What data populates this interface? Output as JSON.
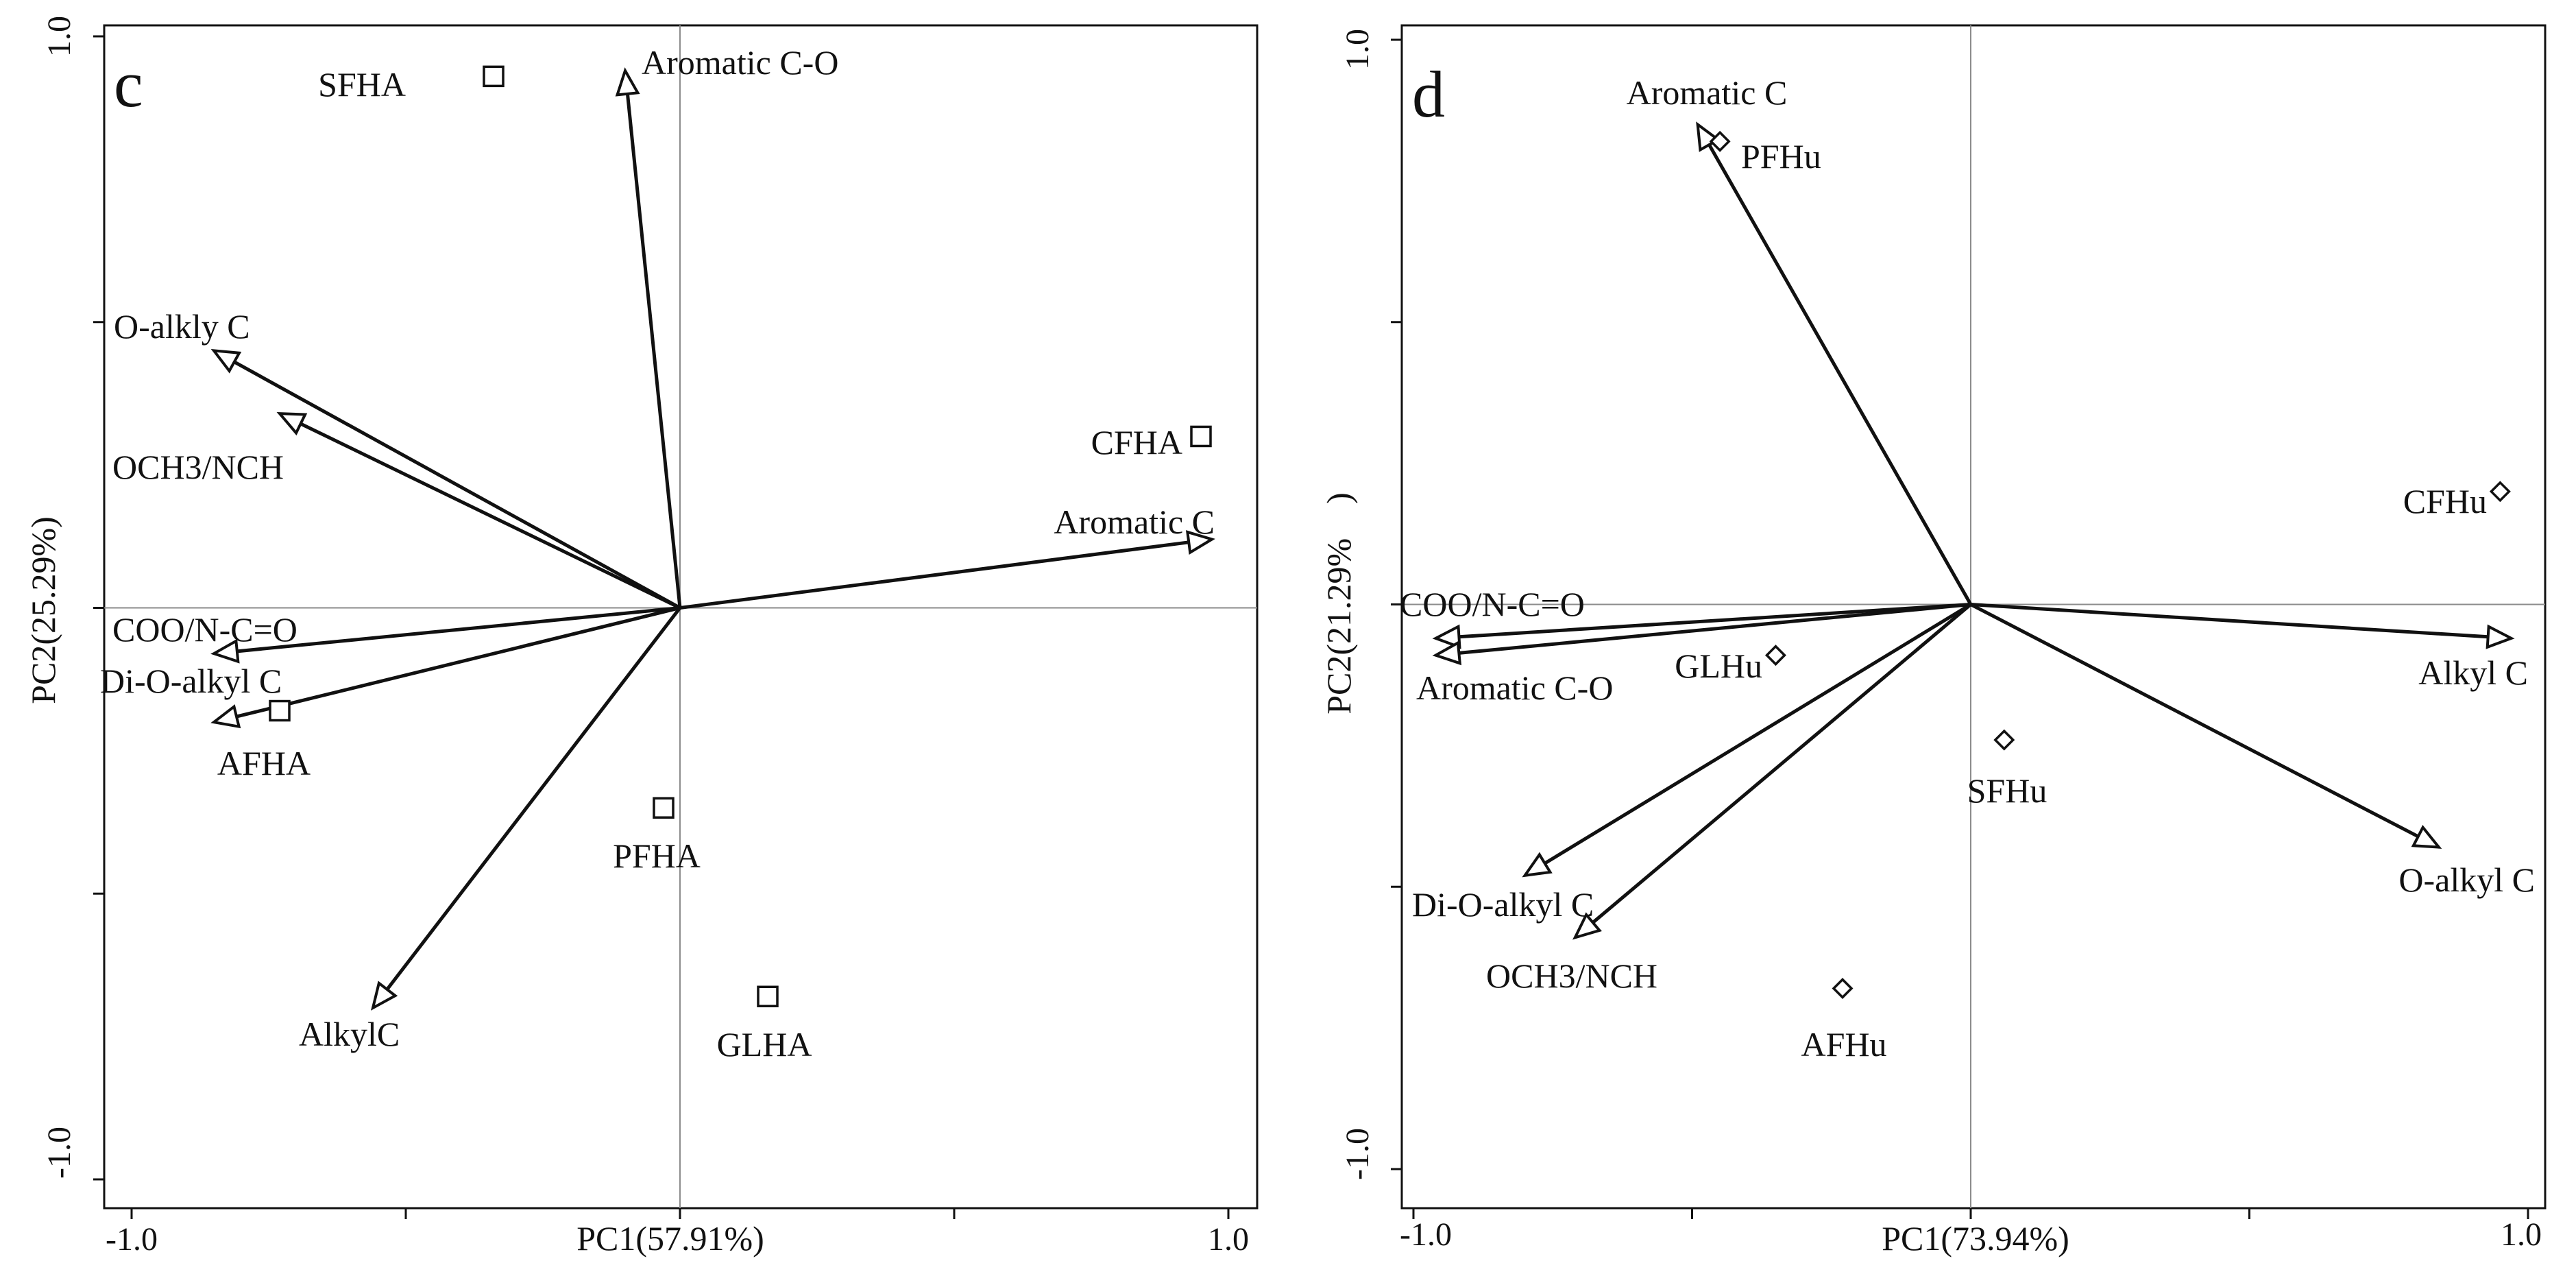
{
  "chart_data": [
    {
      "type": "scatter",
      "subtype": "pca-biplot",
      "panel": "c",
      "xlabel": "PC1(57.91%)",
      "ylabel": "PC2(25.29%)",
      "xlim": [
        -1.0,
        1.0
      ],
      "ylim": [
        -1.0,
        1.0
      ],
      "x_tick_labels": [
        "-1.0",
        "1.0"
      ],
      "y_tick_labels": [
        "1.0",
        "-1.0"
      ],
      "marker": "square",
      "variables": [
        {
          "name": "Aromatic C-O",
          "x": -0.1,
          "y": 0.94
        },
        {
          "name": "O-alkly C",
          "x": -0.85,
          "y": 0.45
        },
        {
          "name": "OCH3/NCH",
          "x": -0.73,
          "y": 0.34
        },
        {
          "name": "Aromatic C",
          "x": 0.97,
          "y": 0.12
        },
        {
          "name": "COO/N-C=O",
          "x": -0.85,
          "y": -0.08
        },
        {
          "name": "Di-O-alkyl C",
          "x": -0.85,
          "y": -0.2
        },
        {
          "name": "AlkylC",
          "x": -0.56,
          "y": -0.7
        }
      ],
      "observations": [
        {
          "name": "SFHA",
          "x": -0.34,
          "y": 0.93
        },
        {
          "name": "CFHA",
          "x": 0.95,
          "y": 0.3
        },
        {
          "name": "AFHA",
          "x": -0.73,
          "y": -0.18
        },
        {
          "name": "PFHA",
          "x": -0.03,
          "y": -0.35
        },
        {
          "name": "GLHA",
          "x": 0.16,
          "y": -0.68
        }
      ]
    },
    {
      "type": "scatter",
      "subtype": "pca-biplot",
      "panel": "d",
      "xlabel": "PC1(73.94%)",
      "ylabel": "PC2(21.29%　)",
      "xlim": [
        -1.0,
        1.0
      ],
      "ylim": [
        -1.0,
        1.0
      ],
      "x_tick_labels": [
        "-1.0",
        "1.0"
      ],
      "y_tick_labels": [
        "1.0",
        "-1.0"
      ],
      "marker": "diamond",
      "variables": [
        {
          "name": "Aromatic C",
          "x": -0.49,
          "y": 0.85
        },
        {
          "name": "COO/N-C=O",
          "x": -0.96,
          "y": -0.06
        },
        {
          "name": "Aromatic C-O",
          "x": -0.96,
          "y": -0.09
        },
        {
          "name": "Alkyl C",
          "x": 0.97,
          "y": -0.06
        },
        {
          "name": "Di-O-alkyl C",
          "x": -0.8,
          "y": -0.48
        },
        {
          "name": "OCH3/NCH",
          "x": -0.71,
          "y": -0.59
        },
        {
          "name": "O-alkyl C",
          "x": 0.84,
          "y": -0.43
        }
      ],
      "observations": [
        {
          "name": "PFHu",
          "x": -0.45,
          "y": 0.82
        },
        {
          "name": "CFHu",
          "x": 0.95,
          "y": 0.2
        },
        {
          "name": "GLHu",
          "x": -0.35,
          "y": -0.09
        },
        {
          "name": "SFHu",
          "x": 0.06,
          "y": -0.24
        },
        {
          "name": "AFHu",
          "x": -0.23,
          "y": -0.68
        }
      ]
    }
  ]
}
